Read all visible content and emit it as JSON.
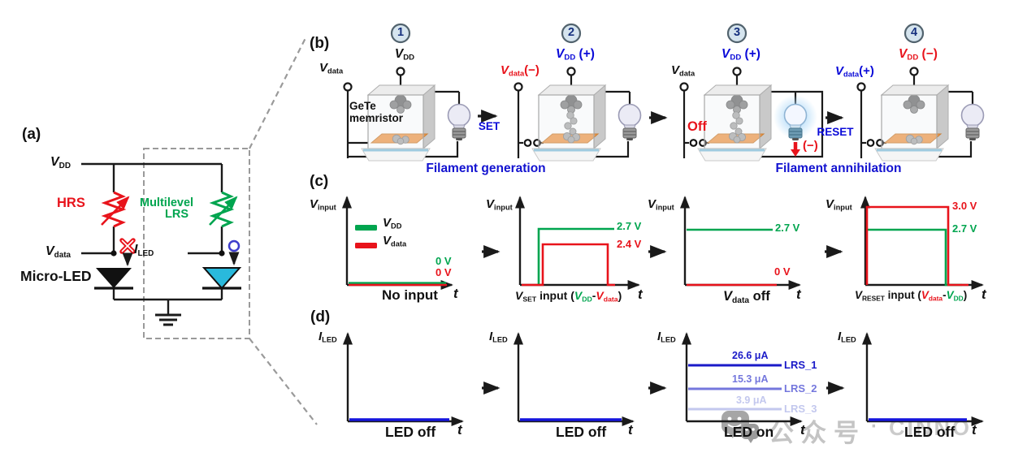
{
  "palette": {
    "red": "#e8131b",
    "green": "#00a54f",
    "blue": "#0a0ad8",
    "black": "#111111",
    "dark_blue": "#1a1ac8",
    "mid_blue": "#7477dd",
    "light_blue": "#c3c8ee",
    "led_line_blue": "#1515dd",
    "cyan_led": "#29b9dc",
    "watermark_gray": "#c4c4c4"
  },
  "panel_a": {
    "label": "(a)",
    "vdd": {
      "main": "V",
      "sub": "DD"
    },
    "vdata": {
      "main": "V",
      "sub": "data"
    },
    "hrs": "HRS",
    "multilevel": "Multilevel",
    "lrs": "LRS",
    "iled": {
      "main": "I",
      "sub": "LED"
    },
    "micro_led": "Micro-LED"
  },
  "panel_b": {
    "label": "(b)",
    "device_line1": "GeTe",
    "device_line2": "memristor",
    "set": "SET",
    "reset": "RESET",
    "off": "Off",
    "minus": "(−)",
    "caption_generation": "Filament generation",
    "caption_annihilation": "Filament annihilation",
    "stages": [
      {
        "number": "1",
        "top": {
          "main": "V",
          "sub": "DD",
          "suffix": "",
          "color": "#111111"
        },
        "left": {
          "main": "V",
          "sub": "data",
          "suffix": "",
          "color": "#111111"
        },
        "state": {
          "filament": "none",
          "bulb": "off",
          "switch": false
        }
      },
      {
        "number": "2",
        "top": {
          "main": "V",
          "sub": "DD",
          "suffix": " (+)",
          "color": "#0a0ad8"
        },
        "left": {
          "main": "V",
          "sub": "data",
          "suffix": "(−)",
          "color": "#e8131b"
        },
        "state": {
          "filament": "full",
          "bulb": "off",
          "switch": true
        }
      },
      {
        "number": "3",
        "top": {
          "main": "V",
          "sub": "DD",
          "suffix": " (+)",
          "color": "#0a0ad8"
        },
        "left": {
          "main": "V",
          "sub": "data",
          "suffix": "",
          "color": "#111111"
        },
        "state": {
          "filament": "full",
          "bulb": "on",
          "switch": true
        }
      },
      {
        "number": "4",
        "top": {
          "main": "V",
          "sub": "DD",
          "suffix": " (−)",
          "color": "#e8131b"
        },
        "left": {
          "main": "V",
          "sub": "data",
          "suffix": "(+)",
          "color": "#0a0ad8"
        },
        "state": {
          "filament": "none",
          "bulb": "off",
          "switch": true
        }
      }
    ]
  },
  "panel_c": {
    "label": "(c)",
    "axis": {
      "main": "V",
      "sub": "input"
    },
    "legend": {
      "vdd": {
        "main": "V",
        "sub": "DD"
      },
      "vdata": {
        "main": "V",
        "sub": "data"
      }
    },
    "t": "t",
    "p1": {
      "zero_green": "0 V",
      "zero_red": "0 V",
      "caption": "No input"
    },
    "p2": {
      "v_green": "2.7 V",
      "v_red": "2.4 V",
      "v": "V",
      "sub": "SET",
      "mid": " input (",
      "g_main": "V",
      "g_sub": "DD",
      "dash": "-",
      "r_main": "V",
      "r_sub": "data",
      "close": ")"
    },
    "p3": {
      "v_green": "2.7 V",
      "v_red": "0 V",
      "main": "V",
      "sub": "data",
      "suffix": " off"
    },
    "p4": {
      "v_red": "3.0 V",
      "v_green": "2.7 V",
      "v": "V",
      "sub": "RESET",
      "mid": " input (",
      "r_main": "V",
      "r_sub": "data",
      "dash": "-",
      "g_main": "V",
      "g_sub": "DD",
      "close": ")"
    }
  },
  "panel_d": {
    "label": "(d)",
    "axis": {
      "main": "I",
      "sub": "LED"
    },
    "t": "t",
    "p1": {
      "caption": "LED off"
    },
    "p2": {
      "caption": "LED off"
    },
    "p3": {
      "caption": "LED on",
      "levels": [
        {
          "value": "26.6 μA",
          "label": "LRS_1"
        },
        {
          "value": "15.3 μA",
          "label": "LRS_2"
        },
        {
          "value": "3.9 μA",
          "label": "LRS_3"
        }
      ]
    },
    "p4": {
      "caption": "LED off"
    }
  },
  "watermark": {
    "text": "公众号",
    "dot": "·",
    "brand": "CINNO"
  }
}
